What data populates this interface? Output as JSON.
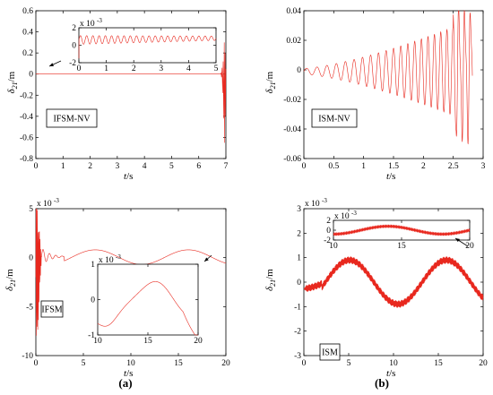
{
  "panel_labels": {
    "a": "(a)",
    "b": "(b)"
  },
  "chart_data": [
    {
      "id": "ifsm-nv",
      "type": "line",
      "xlabel": "t",
      "xunit": "/s",
      "ylabel": "δ",
      "ysub": "21",
      "yunit": "/m",
      "xlim": [
        0,
        7
      ],
      "ylim": [
        -0.8,
        0.6
      ],
      "xticks": [
        0,
        1,
        2,
        3,
        4,
        5,
        6,
        7
      ],
      "yticks": [
        -0.8,
        -0.6,
        -0.4,
        -0.2,
        0,
        0.2,
        0.4,
        0.6
      ],
      "label_box": "IFSM-NV",
      "series": [
        {
          "color": "#e8281e",
          "points": [
            [
              0,
              0
            ],
            [
              6.8,
              0
            ],
            [
              6.82,
              0.01
            ],
            [
              6.84,
              -0.03
            ],
            [
              6.86,
              0.06
            ],
            [
              6.88,
              -0.18
            ],
            [
              6.9,
              0.12
            ],
            [
              6.92,
              -0.42
            ],
            [
              6.94,
              0.3
            ],
            [
              6.95,
              -0.65
            ],
            [
              6.97,
              0.2
            ],
            [
              6.98,
              -0.4
            ],
            [
              7,
              0.05
            ]
          ]
        }
      ],
      "inset": {
        "xlim": [
          0,
          5
        ],
        "ylim": [
          -2,
          2
        ],
        "exponent": "x 10",
        "exponent_power": "-3",
        "xticks": [
          0,
          1,
          2,
          3,
          4,
          5
        ],
        "yticks": [
          -2,
          0,
          2
        ],
        "arrow": "bottom-left",
        "series": [
          {
            "color": "#e8281e",
            "function": "growing_oscillation",
            "x0": 0,
            "x1": 5,
            "start_amp": 0.6,
            "end_amp": 0.35,
            "start_mid": 0.6,
            "end_mid": 0.5,
            "periods": 22
          }
        ]
      }
    },
    {
      "id": "ism-nv",
      "type": "line",
      "xlabel": "t",
      "xunit": "/s",
      "ylabel": "δ",
      "ysub": "21",
      "yunit": "/m",
      "xlim": [
        0,
        3
      ],
      "ylim": [
        -0.06,
        0.04
      ],
      "xticks": [
        0,
        0.5,
        1,
        1.5,
        2,
        2.5,
        3
      ],
      "yticks": [
        -0.06,
        -0.04,
        -0.02,
        0,
        0.02,
        0.04
      ],
      "label_box": "ISM-NV",
      "series": [
        {
          "color": "#e8281e",
          "function": "growing_oscillation_b",
          "x0": 0,
          "x1": 2.82,
          "periods": 21
        }
      ]
    },
    {
      "id": "ifsm",
      "type": "line",
      "xlabel": "t",
      "xunit": "/s",
      "ylabel": "δ",
      "ysub": "21",
      "yunit": "/m",
      "xlim": [
        0,
        20
      ],
      "ylim": [
        -10,
        5
      ],
      "exponent": "x 10",
      "exponent_power": "-3",
      "xticks": [
        0,
        5,
        10,
        15,
        20
      ],
      "yticks": [
        -10,
        -5,
        0,
        5
      ],
      "label_box": "IFSM",
      "series": [
        {
          "color": "#e8281e",
          "function": "ifsm_main",
          "x0": 0,
          "x1": 20
        }
      ],
      "inset": {
        "xlim": [
          10,
          20
        ],
        "ylim": [
          -1,
          1
        ],
        "exponent": "x 10",
        "exponent_power": "-3",
        "xticks": [
          10,
          15,
          20
        ],
        "yticks": [
          -1,
          0,
          1
        ],
        "arrow": "top-right",
        "series": [
          {
            "color": "#e8281e",
            "function": "ifsm_inset",
            "x0": 10,
            "x1": 20
          }
        ]
      }
    },
    {
      "id": "ism",
      "type": "line",
      "xlabel": "t",
      "xunit": "/s",
      "ylabel": "δ",
      "ysub": "21",
      "yunit": "/m",
      "xlim": [
        0,
        20
      ],
      "ylim": [
        -3,
        3
      ],
      "exponent": "x 10",
      "exponent_power": "-3",
      "xticks": [
        0,
        5,
        10,
        15,
        20
      ],
      "yticks": [
        -3,
        -2,
        -1,
        0,
        1,
        2,
        3
      ],
      "label_box": "ISM",
      "series": [
        {
          "color": "#e8281e",
          "function": "ism_main",
          "x0": 0,
          "x1": 20
        }
      ],
      "inset": {
        "xlim": [
          10,
          20
        ],
        "ylim": [
          -2,
          2
        ],
        "exponent": "x 10",
        "exponent_power": "-3",
        "xticks": [
          10,
          15,
          20
        ],
        "yticks": [
          -2,
          0,
          2
        ],
        "arrow": "bottom-right",
        "series": [
          {
            "color": "#e8281e",
            "function": "ism_inset",
            "x0": 10,
            "x1": 20
          }
        ]
      }
    }
  ]
}
